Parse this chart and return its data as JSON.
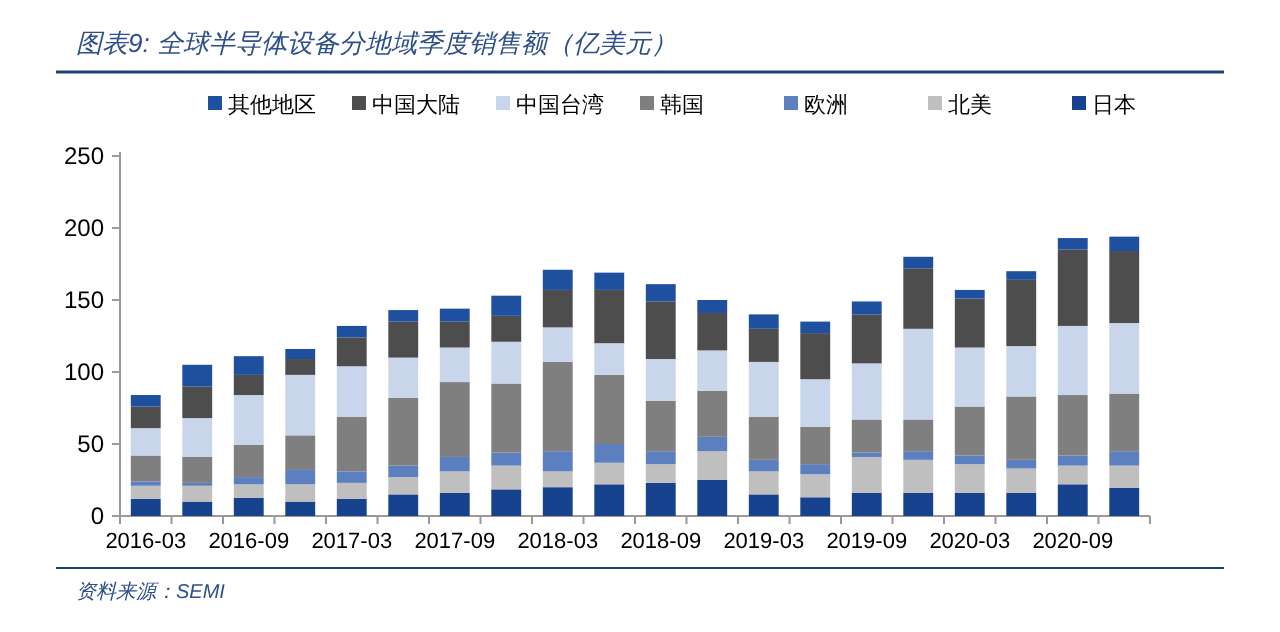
{
  "chart_data": {
    "type": "bar",
    "stacked": true,
    "title": "图表9: 全球半导体设备分地域季度销售额（亿美元）",
    "annotations": [
      "资料来源：SEMI"
    ],
    "categories": [
      "2016-03",
      null,
      "2016-09",
      null,
      "2017-03",
      null,
      "2017-09",
      null,
      "2018-03",
      null,
      "2018-09",
      null,
      "2019-03",
      null,
      "2019-09",
      null,
      "2020-03",
      null,
      "2020-09",
      null
    ],
    "series": [
      {
        "name": "日本",
        "color": "#17428e",
        "values": [
          12,
          10,
          12.5,
          10,
          12,
          15,
          16,
          18.5,
          20,
          22,
          23,
          25,
          15,
          13,
          16,
          16,
          16,
          16,
          22,
          19.5
        ]
      },
      {
        "name": "北美",
        "color": "#bfbfbf",
        "values": [
          9,
          11,
          9.5,
          12,
          11,
          12,
          15,
          16.5,
          11,
          15,
          13,
          20,
          16,
          16,
          25,
          23,
          20,
          17,
          13,
          15.5
        ]
      },
      {
        "name": "欧洲",
        "color": "#5b7fbf",
        "values": [
          3,
          2,
          5,
          10,
          8,
          8,
          10,
          9,
          14,
          13,
          9,
          10,
          8,
          7,
          3,
          6,
          6,
          6,
          7,
          10
        ]
      },
      {
        "name": "韩国",
        "color": "#7f7f7f",
        "values": [
          18,
          18,
          22.5,
          24,
          38,
          47,
          52,
          48,
          62,
          48,
          35,
          32,
          30,
          26,
          23,
          22,
          34,
          44,
          42,
          40
        ]
      },
      {
        "name": "中国台湾",
        "color": "#c9d5ea",
        "values": [
          19,
          27,
          34.5,
          42,
          35,
          28,
          24,
          29,
          24,
          22,
          29,
          28,
          38,
          33,
          39,
          63,
          41,
          35,
          48,
          49
        ]
      },
      {
        "name": "中国大陆",
        "color": "#4d4d4d",
        "values": [
          15,
          22,
          14,
          11,
          20,
          25,
          18,
          18,
          26,
          37,
          40,
          26,
          23,
          32,
          34,
          42,
          34,
          46,
          53,
          50
        ]
      },
      {
        "name": "其他地区",
        "color": "#1f50a0",
        "values": [
          8,
          15,
          13,
          7,
          8,
          8,
          9,
          14,
          14,
          12,
          12,
          9,
          10,
          8,
          9,
          8,
          6,
          6,
          8,
          10
        ]
      }
    ],
    "ylim": [
      0,
      250
    ],
    "yticks": [
      0,
      50,
      100,
      150,
      200,
      250
    ],
    "legend": "top",
    "grid": false
  }
}
